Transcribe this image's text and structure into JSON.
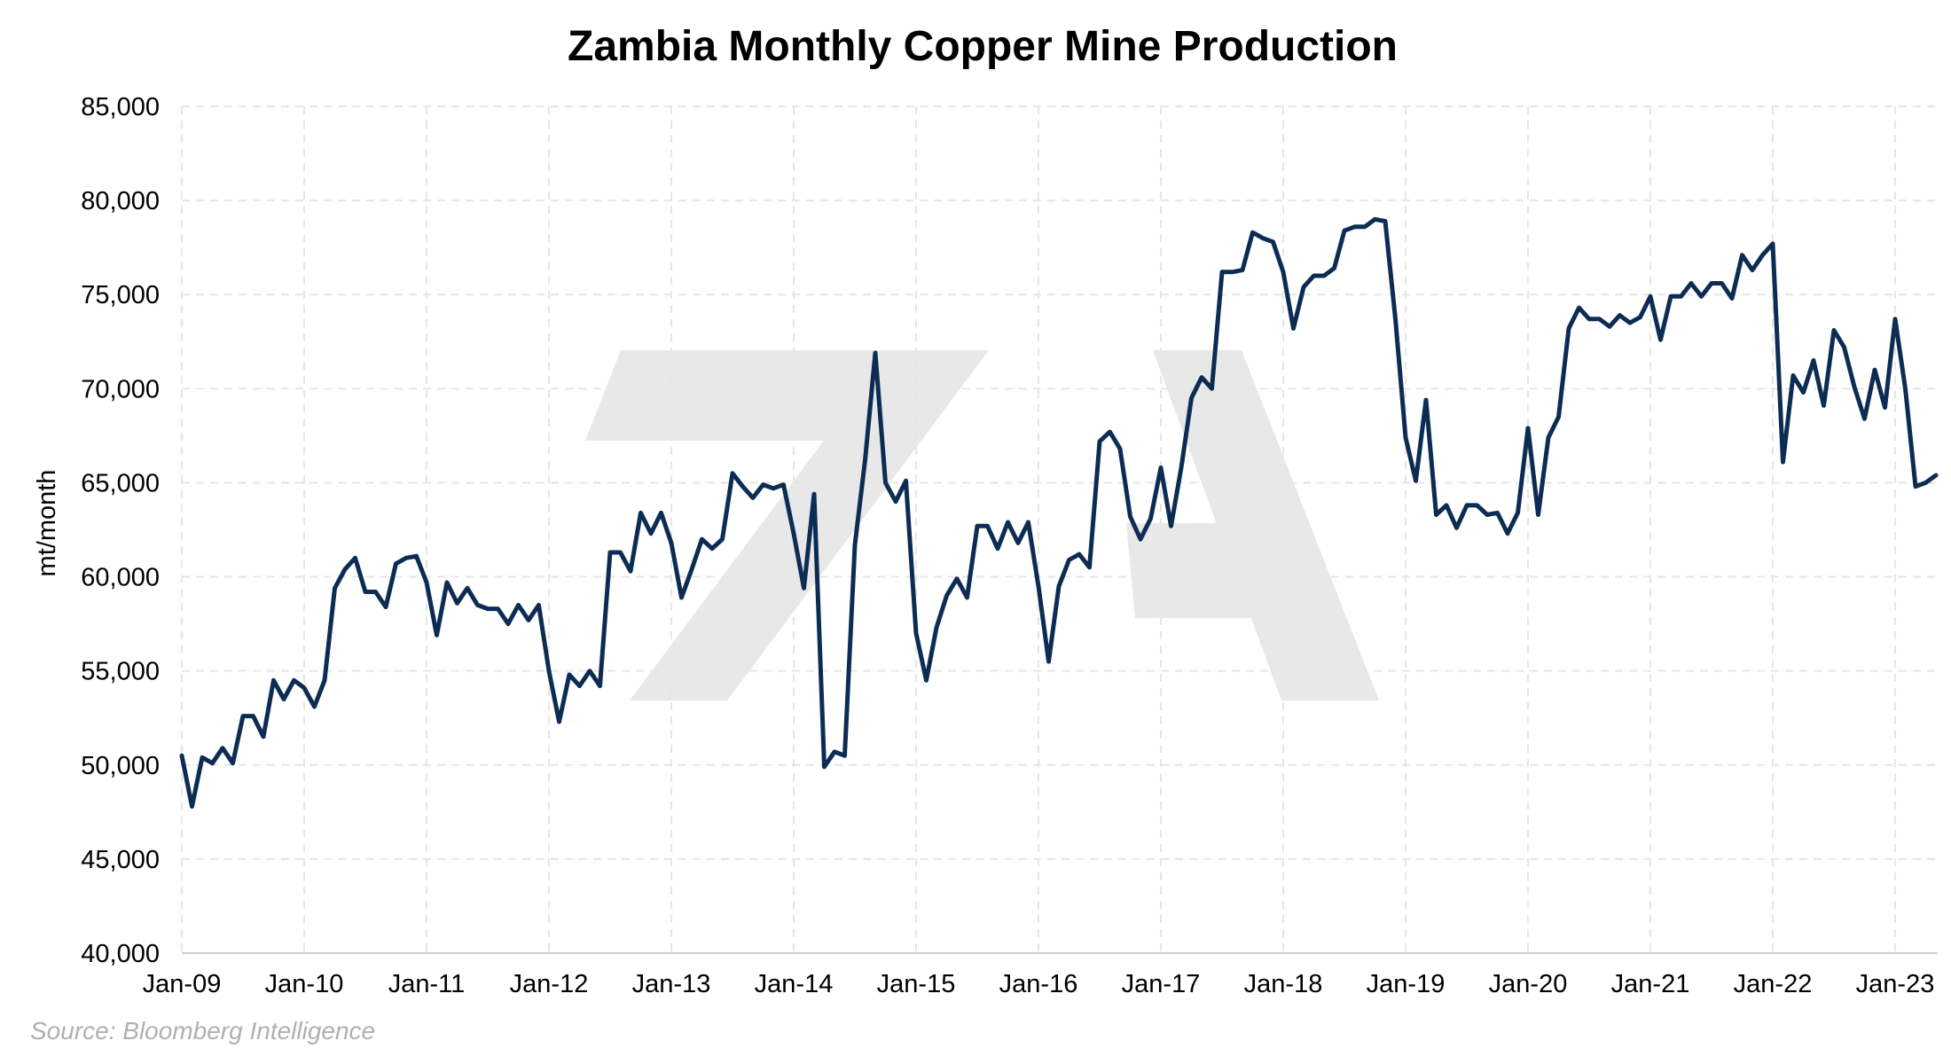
{
  "chart_data": {
    "type": "line",
    "title": "Zambia Monthly Copper Mine Production",
    "xlabel": "",
    "ylabel": "mt/month",
    "ylim": [
      40000,
      85000
    ],
    "yticks": [
      "40,000",
      "45,000",
      "50,000",
      "55,000",
      "60,000",
      "65,000",
      "70,000",
      "75,000",
      "80,000",
      "85,000"
    ],
    "xticks": [
      "Jan-09",
      "Jan-10",
      "Jan-11",
      "Jan-12",
      "Jan-13",
      "Jan-14",
      "Jan-15",
      "Jan-16",
      "Jan-17",
      "Jan-18",
      "Jan-19",
      "Jan-20",
      "Jan-21",
      "Jan-22",
      "Jan-23"
    ],
    "x_start": "Jan-09",
    "x_end": "May-23",
    "grid": true,
    "legend": "none",
    "line_color": "#0d2c54",
    "source": "Source: Bloomberg Intelligence",
    "series": [
      {
        "values": [
          50500,
          47800,
          50400,
          50100,
          50900,
          50100,
          52600,
          52600,
          51500,
          54500,
          53500,
          54500,
          54100,
          53100,
          54500,
          59400,
          60400,
          61000,
          59200,
          59200,
          58400,
          60700,
          61000,
          61100,
          59700,
          56900,
          59700,
          58600,
          59400,
          58500,
          58300,
          58300,
          57500,
          58500,
          57700,
          58500,
          55000,
          52300,
          54800,
          54200,
          55000,
          54200,
          61300,
          61300,
          60300,
          63400,
          62300,
          63400,
          61800,
          58900,
          60400,
          62000,
          61500,
          62000,
          65500,
          64800,
          64200,
          64900,
          64700,
          64900,
          62300,
          59400,
          64400,
          49900,
          50700,
          50500,
          61700,
          66200,
          71900,
          65000,
          64000,
          65100,
          57000,
          54500,
          57300,
          59000,
          59900,
          58900,
          62700,
          62700,
          61500,
          62900,
          61800,
          62900,
          59500,
          55500,
          59500,
          60900,
          61200,
          60500,
          67200,
          67700,
          66800,
          63200,
          62000,
          63100,
          65800,
          62700,
          65800,
          69500,
          70600,
          70000,
          76200,
          76200,
          76300,
          78300,
          78000,
          77800,
          76200,
          73200,
          75400,
          76000,
          76000,
          76400,
          78400,
          78600,
          78600,
          79000,
          78900,
          73700,
          67400,
          65100,
          69400,
          63300,
          63800,
          62600,
          63800,
          63800,
          63300,
          63400,
          62300,
          63400,
          67900,
          63300,
          67400,
          68500,
          73200,
          74300,
          73700,
          73700,
          73300,
          73900,
          73500,
          73800,
          74900,
          72600,
          74900,
          74900,
          75600,
          74900,
          75600,
          75600,
          74800,
          77100,
          76300,
          77100,
          77700,
          66100,
          70700,
          69800,
          71500,
          69100,
          73100,
          72200,
          70100,
          68400,
          71000,
          69000,
          73700,
          70000,
          64800,
          65000,
          65400
        ]
      }
    ]
  }
}
